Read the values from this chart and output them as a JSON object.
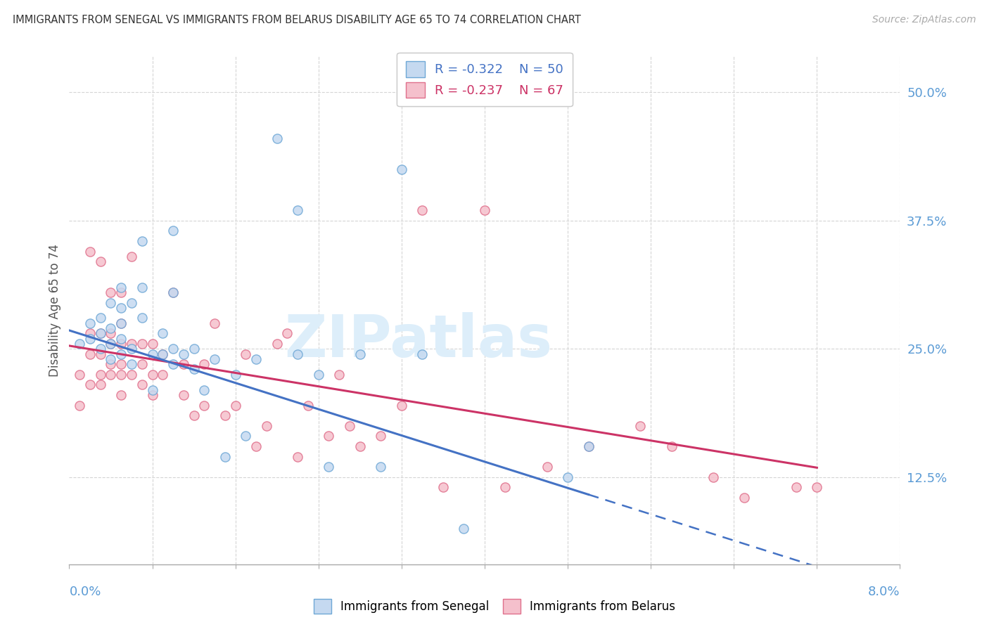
{
  "title": "IMMIGRANTS FROM SENEGAL VS IMMIGRANTS FROM BELARUS DISABILITY AGE 65 TO 74 CORRELATION CHART",
  "source": "Source: ZipAtlas.com",
  "ylabel": "Disability Age 65 to 74",
  "ytick_labels": [
    "12.5%",
    "25.0%",
    "37.5%",
    "50.0%"
  ],
  "ytick_values": [
    0.125,
    0.25,
    0.375,
    0.5
  ],
  "xmin": 0.0,
  "xmax": 0.08,
  "ymin": 0.04,
  "ymax": 0.535,
  "legend_r1": "R = -0.322",
  "legend_n1": "N = 50",
  "legend_r2": "R = -0.237",
  "legend_n2": "N = 67",
  "color_senegal_fill": "#c5d9f0",
  "color_senegal_edge": "#6fa8d6",
  "color_senegal_line": "#4472c4",
  "color_belarus_fill": "#f5c0cc",
  "color_belarus_edge": "#e0708c",
  "color_belarus_line": "#cc3366",
  "color_axis_labels": "#5b9bd5",
  "watermark_text": "ZIPatlas",
  "watermark_color": "#ddeefa",
  "grid_color": "#d5d5d5",
  "senegal_x": [
    0.001,
    0.002,
    0.002,
    0.003,
    0.003,
    0.003,
    0.004,
    0.004,
    0.004,
    0.004,
    0.005,
    0.005,
    0.005,
    0.005,
    0.005,
    0.006,
    0.006,
    0.006,
    0.007,
    0.007,
    0.007,
    0.008,
    0.008,
    0.009,
    0.009,
    0.01,
    0.01,
    0.01,
    0.01,
    0.011,
    0.012,
    0.012,
    0.013,
    0.014,
    0.015,
    0.016,
    0.017,
    0.018,
    0.02,
    0.022,
    0.022,
    0.024,
    0.025,
    0.028,
    0.03,
    0.032,
    0.034,
    0.038,
    0.05,
    0.048
  ],
  "senegal_y": [
    0.255,
    0.275,
    0.26,
    0.25,
    0.265,
    0.28,
    0.24,
    0.255,
    0.27,
    0.295,
    0.245,
    0.26,
    0.275,
    0.29,
    0.31,
    0.235,
    0.25,
    0.295,
    0.28,
    0.31,
    0.355,
    0.21,
    0.245,
    0.245,
    0.265,
    0.235,
    0.25,
    0.305,
    0.365,
    0.245,
    0.23,
    0.25,
    0.21,
    0.24,
    0.145,
    0.225,
    0.165,
    0.24,
    0.455,
    0.245,
    0.385,
    0.225,
    0.135,
    0.245,
    0.135,
    0.425,
    0.245,
    0.075,
    0.155,
    0.125
  ],
  "belarus_x": [
    0.001,
    0.001,
    0.002,
    0.002,
    0.002,
    0.002,
    0.003,
    0.003,
    0.003,
    0.003,
    0.003,
    0.004,
    0.004,
    0.004,
    0.004,
    0.004,
    0.005,
    0.005,
    0.005,
    0.005,
    0.005,
    0.005,
    0.006,
    0.006,
    0.006,
    0.007,
    0.007,
    0.007,
    0.008,
    0.008,
    0.008,
    0.009,
    0.009,
    0.01,
    0.011,
    0.011,
    0.012,
    0.013,
    0.013,
    0.014,
    0.015,
    0.016,
    0.017,
    0.018,
    0.019,
    0.02,
    0.021,
    0.022,
    0.023,
    0.025,
    0.026,
    0.027,
    0.028,
    0.03,
    0.032,
    0.034,
    0.036,
    0.04,
    0.042,
    0.046,
    0.05,
    0.055,
    0.058,
    0.062,
    0.065,
    0.07,
    0.072
  ],
  "belarus_y": [
    0.195,
    0.225,
    0.215,
    0.245,
    0.265,
    0.345,
    0.215,
    0.225,
    0.245,
    0.265,
    0.335,
    0.225,
    0.235,
    0.255,
    0.265,
    0.305,
    0.205,
    0.225,
    0.235,
    0.255,
    0.275,
    0.305,
    0.225,
    0.255,
    0.34,
    0.215,
    0.235,
    0.255,
    0.205,
    0.225,
    0.255,
    0.225,
    0.245,
    0.305,
    0.205,
    0.235,
    0.185,
    0.195,
    0.235,
    0.275,
    0.185,
    0.195,
    0.245,
    0.155,
    0.175,
    0.255,
    0.265,
    0.145,
    0.195,
    0.165,
    0.225,
    0.175,
    0.155,
    0.165,
    0.195,
    0.385,
    0.115,
    0.385,
    0.115,
    0.135,
    0.155,
    0.175,
    0.155,
    0.125,
    0.105,
    0.115,
    0.115
  ]
}
